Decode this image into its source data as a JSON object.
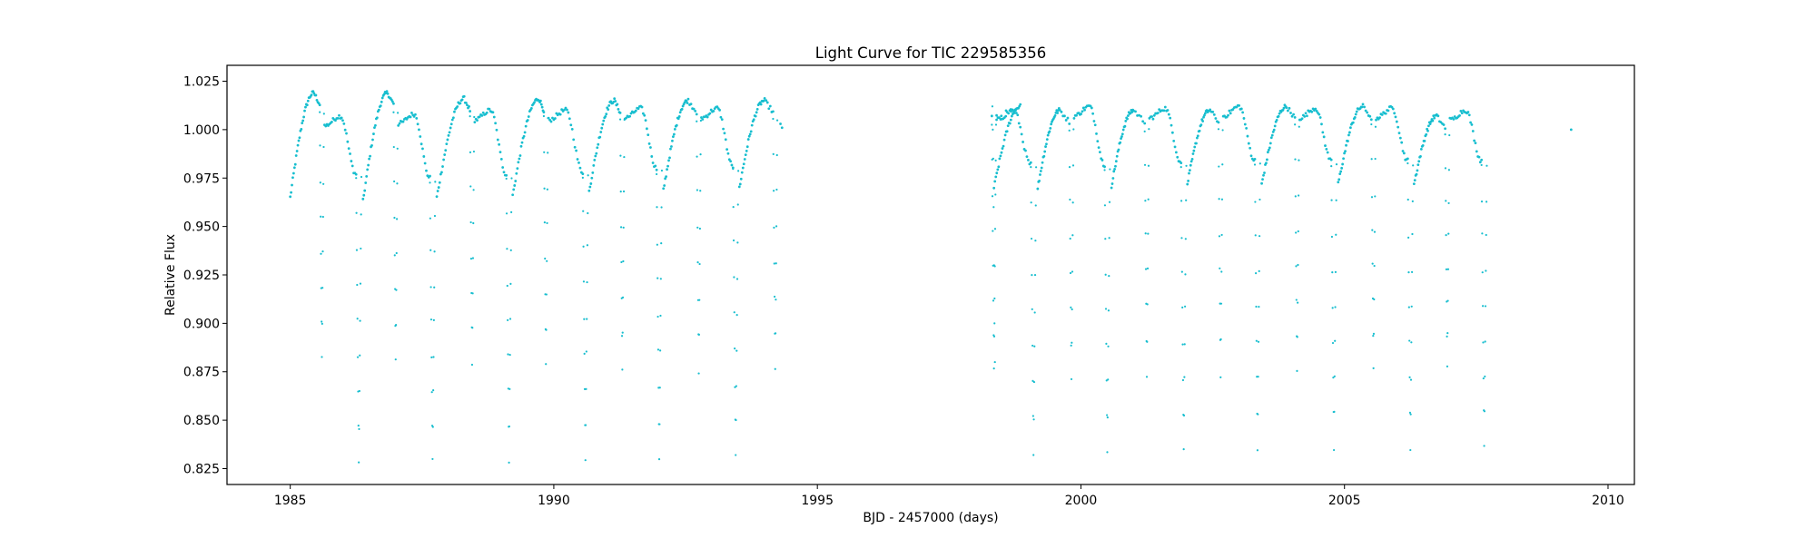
{
  "chart_data": {
    "type": "scatter",
    "title": "Light Curve for TIC 229585356",
    "xlabel": "BJD - 2457000 (days)",
    "ylabel": "Relative Flux",
    "xlim": [
      1983.8,
      2010.5
    ],
    "ylim": [
      0.8168,
      1.0332
    ],
    "xticks": [
      1985,
      1990,
      1995,
      2000,
      2005,
      2010
    ],
    "xtick_labels": [
      "1985",
      "1990",
      "1995",
      "2000",
      "2005",
      "2010"
    ],
    "yticks": [
      0.825,
      0.85,
      0.875,
      0.9,
      0.925,
      0.95,
      0.975,
      1.0,
      1.025
    ],
    "ytick_labels": [
      "0.825",
      "0.850",
      "0.875",
      "0.900",
      "0.925",
      "0.950",
      "0.975",
      "1.000",
      "1.025"
    ],
    "grid": false,
    "marker_color": "#17becf",
    "segments": [
      {
        "x_start": 1985.0,
        "x_end": 1994.25
      },
      {
        "x_start": 1998.3,
        "x_end": 2007.9
      }
    ],
    "outliers": [
      {
        "x": 2009.3,
        "y": 1.0
      }
    ],
    "eclipse_cycles": [
      {
        "start": 1985.0,
        "primary_time": 1985.6,
        "primary_depth": 0.882,
        "peak_time": 1985.45,
        "peak_flux": 1.019,
        "secondary_time": 1986.3,
        "secondary_depth": 0.828,
        "mid_flux": 1.007,
        "start_flux": 0.965
      },
      {
        "start": 1986.38,
        "primary_time": 1987.0,
        "primary_depth": 0.881,
        "peak_time": 1986.85,
        "peak_flux": 1.019,
        "secondary_time": 1987.7,
        "secondary_depth": 0.829,
        "mid_flux": 1.008,
        "start_flux": 0.963
      },
      {
        "start": 1987.78,
        "primary_time": 1988.45,
        "primary_depth": 0.879,
        "peak_time": 1988.3,
        "peak_flux": 1.016,
        "secondary_time": 1989.15,
        "secondary_depth": 0.829,
        "mid_flux": 1.01,
        "start_flux": 0.965
      },
      {
        "start": 1989.22,
        "primary_time": 1989.85,
        "primary_depth": 0.878,
        "peak_time": 1989.72,
        "peak_flux": 1.016,
        "secondary_time": 1990.6,
        "secondary_depth": 0.83,
        "mid_flux": 1.01,
        "start_flux": 0.966
      },
      {
        "start": 1990.67,
        "primary_time": 1991.3,
        "primary_depth": 0.876,
        "peak_time": 1991.15,
        "peak_flux": 1.015,
        "secondary_time": 1992.0,
        "secondary_depth": 0.83,
        "mid_flux": 1.011,
        "start_flux": 0.968
      },
      {
        "start": 1992.08,
        "primary_time": 1992.75,
        "primary_depth": 0.875,
        "peak_time": 1992.55,
        "peak_flux": 1.015,
        "secondary_time": 1993.45,
        "secondary_depth": 0.831,
        "mid_flux": 1.011,
        "start_flux": 0.969
      },
      {
        "start": 1993.52,
        "primary_time": 1994.2,
        "primary_depth": 0.876,
        "peak_time": 1994.0,
        "peak_flux": 1.015,
        "secondary_time": null,
        "secondary_depth": null,
        "mid_flux": 1.003,
        "start_flux": 0.97
      },
      {
        "start": 1998.35,
        "primary_time": 1998.35,
        "primary_depth": 0.876,
        "peak_time": 1998.85,
        "peak_flux": 1.012,
        "secondary_time": 1999.1,
        "secondary_depth": 0.833,
        "mid_flux": 1.01,
        "start_flux": 0.97
      },
      {
        "start": 1999.18,
        "primary_time": 1999.82,
        "primary_depth": 0.871,
        "peak_time": 1999.6,
        "peak_flux": 1.01,
        "secondary_time": 2000.5,
        "secondary_depth": 0.834,
        "mid_flux": 1.012,
        "start_flux": 0.97
      },
      {
        "start": 2000.58,
        "primary_time": 2001.25,
        "primary_depth": 0.873,
        "peak_time": 2001.0,
        "peak_flux": 1.01,
        "secondary_time": 2001.95,
        "secondary_depth": 0.835,
        "mid_flux": 1.011,
        "start_flux": 0.971
      },
      {
        "start": 2002.02,
        "primary_time": 2002.65,
        "primary_depth": 0.873,
        "peak_time": 2002.45,
        "peak_flux": 1.01,
        "secondary_time": 2003.35,
        "secondary_depth": 0.835,
        "mid_flux": 1.012,
        "start_flux": 0.972
      },
      {
        "start": 2003.43,
        "primary_time": 2004.1,
        "primary_depth": 0.875,
        "peak_time": 2003.9,
        "peak_flux": 1.012,
        "secondary_time": 2004.8,
        "secondary_depth": 0.835,
        "mid_flux": 1.011,
        "start_flux": 0.972
      },
      {
        "start": 2004.88,
        "primary_time": 2005.55,
        "primary_depth": 0.876,
        "peak_time": 2005.35,
        "peak_flux": 1.012,
        "secondary_time": 2006.25,
        "secondary_depth": 0.835,
        "mid_flux": 1.011,
        "start_flux": 0.972
      },
      {
        "start": 2006.32,
        "primary_time": 2006.95,
        "primary_depth": 0.877,
        "peak_time": 2006.75,
        "peak_flux": 1.007,
        "secondary_time": 2007.65,
        "secondary_depth": 0.836,
        "mid_flux": 1.01,
        "start_flux": 0.972
      }
    ]
  }
}
